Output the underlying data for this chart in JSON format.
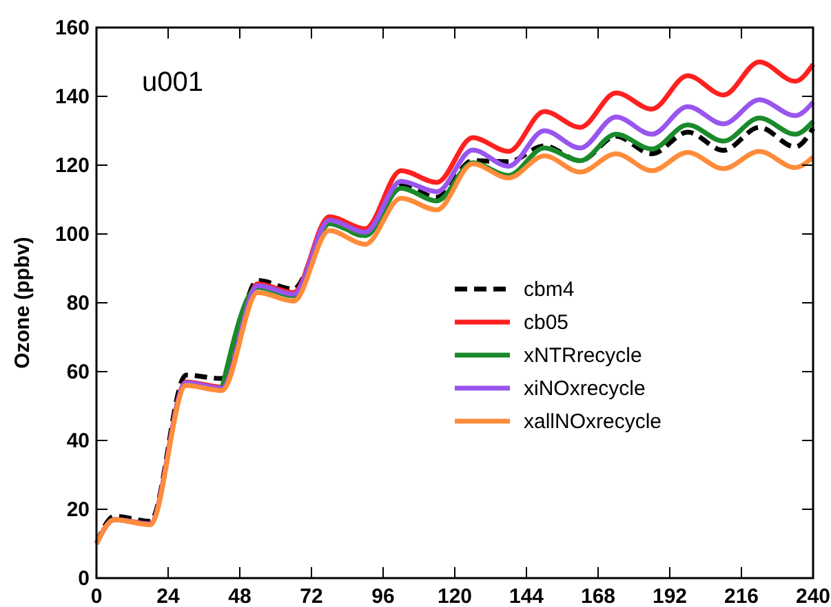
{
  "chart_data": {
    "type": "line",
    "ylabel": "Ozone (ppbv)",
    "annotations": [
      "u001"
    ],
    "x": [
      0,
      6,
      18,
      30,
      42,
      54,
      66,
      78,
      90,
      102,
      114,
      126,
      138,
      150,
      162,
      174,
      186,
      198,
      210,
      222,
      234,
      240
    ],
    "xlim": [
      0,
      240
    ],
    "xticks": [
      0,
      24,
      48,
      72,
      96,
      120,
      144,
      168,
      192,
      216,
      240
    ],
    "ylim": [
      0,
      160
    ],
    "yticks": [
      0,
      20,
      40,
      60,
      80,
      100,
      120,
      140,
      160
    ],
    "legend": "bottom right",
    "grid": false,
    "series": [
      {
        "name": "cbm4",
        "color": "#000000",
        "line_style": "dashed",
        "values": [
          10,
          18,
          16.5,
          59,
          58,
          86.5,
          84,
          103,
          99.5,
          114,
          110.7,
          121.3,
          121,
          125.6,
          121.3,
          128.4,
          123.3,
          129.6,
          124.3,
          131,
          125.3,
          130.7
        ]
      },
      {
        "name": "cb05",
        "color": "#ff2020",
        "line_style": "solid",
        "values": [
          10,
          17,
          15.8,
          57,
          55.5,
          85.5,
          83,
          105,
          101.5,
          118.4,
          115,
          128,
          124,
          135.6,
          131,
          141,
          136.3,
          146,
          140.4,
          150,
          144.4,
          149.3
        ]
      },
      {
        "name": "xNTRrecycle",
        "color": "#1a8a2a",
        "line_style": "solid",
        "values": [
          null,
          null,
          null,
          null,
          55,
          84.5,
          82,
          103,
          99.5,
          113.3,
          109.6,
          120.7,
          117,
          125,
          121.3,
          129,
          124.7,
          131.7,
          127,
          133.7,
          129,
          132.7
        ]
      },
      {
        "name": "xiNOxrecycle",
        "color": "#9955ee",
        "line_style": "solid",
        "values": [
          10,
          17,
          15.7,
          56.8,
          55.2,
          85,
          82.5,
          104,
          100.5,
          115.3,
          112.3,
          124.4,
          119.7,
          130,
          125,
          134,
          129,
          137,
          132,
          139,
          134.4,
          138.3
        ]
      },
      {
        "name": "xallNOxrecycle",
        "color": "#ff8c3a",
        "line_style": "solid",
        "values": [
          10,
          17,
          15.5,
          56,
          54.5,
          83,
          80.5,
          101,
          97,
          110.4,
          107,
          120.4,
          116.3,
          122.7,
          118,
          123.3,
          118.4,
          123.7,
          119,
          124,
          119.3,
          122.4
        ]
      }
    ]
  }
}
